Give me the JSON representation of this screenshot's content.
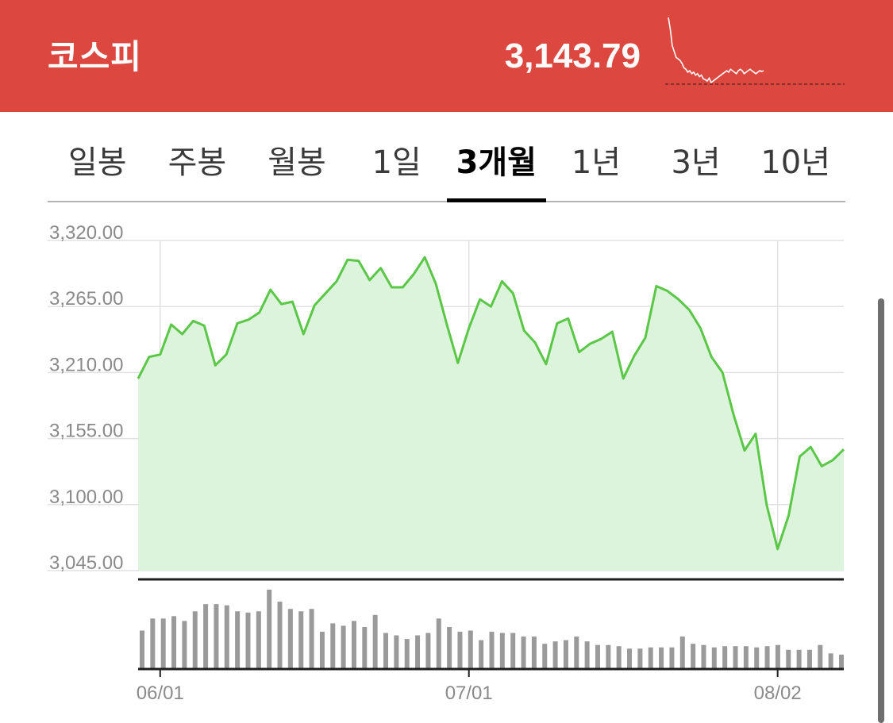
{
  "header": {
    "name": "코스피",
    "value": "3,143.79",
    "accent_color": "#dc4740"
  },
  "tabs": [
    {
      "label": "일봉",
      "active": false
    },
    {
      "label": "주봉",
      "active": false
    },
    {
      "label": "월봉",
      "active": false
    },
    {
      "label": "1일",
      "active": false
    },
    {
      "label": "3개월",
      "active": true
    },
    {
      "label": "1년",
      "active": false
    },
    {
      "label": "3년",
      "active": false
    },
    {
      "label": "10년",
      "active": false
    }
  ],
  "chart_data": [
    {
      "type": "area",
      "title": "",
      "line_color": "#5ac746",
      "fill_color": "#dcf4dc",
      "y_range": [
        3045,
        3320
      ],
      "y_ticks": [
        "3,320.00",
        "3,265.00",
        "3,210.00",
        "3,155.00",
        "3,100.00",
        "3,045.00"
      ],
      "y_tick_values": [
        3320,
        3265,
        3210,
        3155,
        3100,
        3045
      ],
      "x_ticks": [
        "06/01",
        "07/01",
        "08/02"
      ],
      "x_tick_index": [
        2,
        30,
        58
      ],
      "grid": true,
      "series": [
        {
          "values": [
            3205,
            3223,
            3225,
            3250,
            3242,
            3253,
            3249,
            3216,
            3225,
            3251,
            3254,
            3260,
            3279,
            3267,
            3269,
            3242,
            3266,
            3276,
            3286,
            3304,
            3303,
            3287,
            3297,
            3281,
            3281,
            3292,
            3306,
            3284,
            3250,
            3218,
            3247,
            3271,
            3265,
            3286,
            3276,
            3245,
            3235,
            3217,
            3251,
            3255,
            3227,
            3234,
            3238,
            3244,
            3205,
            3224,
            3239,
            3282,
            3278,
            3271,
            3262,
            3247,
            3223,
            3210,
            3175,
            3145,
            3159,
            3100,
            3063,
            3091,
            3140,
            3148,
            3132,
            3137,
            3146
          ]
        }
      ]
    },
    {
      "type": "bar",
      "title": "",
      "bar_color": "#9a9a9a",
      "values": [
        32,
        42,
        42,
        44,
        40,
        48,
        54,
        54,
        53,
        48,
        47,
        48,
        66,
        56,
        50,
        48,
        50,
        31,
        38,
        36,
        40,
        35,
        45,
        30,
        28,
        25,
        28,
        30,
        42,
        35,
        31,
        32,
        24,
        31,
        30,
        30,
        27,
        27,
        21,
        23,
        24,
        27,
        23,
        20,
        20,
        19,
        17,
        17,
        18,
        18,
        18,
        27,
        21,
        20,
        18,
        19,
        19,
        19,
        18,
        19,
        20,
        16,
        16,
        16,
        20,
        13,
        12
      ]
    }
  ],
  "sparkline": {
    "values": [
      98,
      82,
      60,
      52,
      44,
      42,
      40,
      36,
      30,
      28,
      24,
      26,
      22,
      24,
      20,
      22,
      18,
      20,
      15,
      14,
      12,
      16,
      10,
      12,
      14,
      16,
      18,
      20,
      22,
      24,
      26,
      24,
      28,
      26,
      24,
      22,
      26,
      28,
      26,
      22,
      24,
      26,
      28,
      26,
      24,
      22,
      24,
      26,
      25,
      26
    ],
    "baseline": 10
  }
}
